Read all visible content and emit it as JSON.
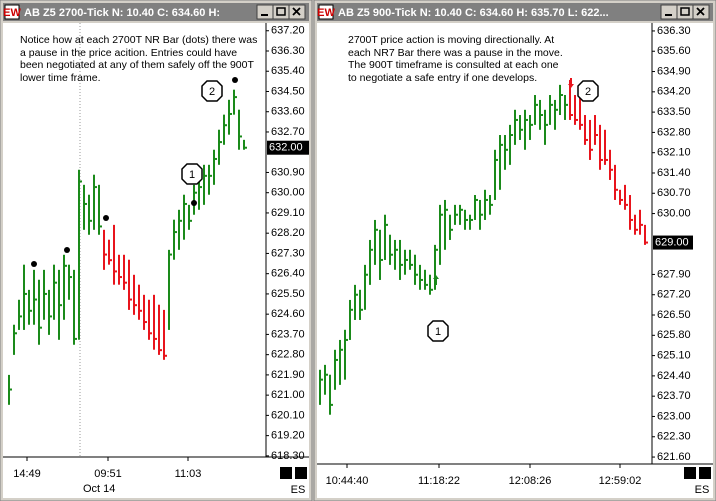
{
  "chart_data": [
    {
      "type": "ohlc",
      "title": "AB Z5 2700-Tick N:   10.40 C:   634.60  H:",
      "annotation": "Notice how at each 2700T NR Bar (dots) there was a pause in the price acition. Entries could have been negotiated at any of them safely off the 900T lower time frame.",
      "callouts": [
        "1",
        "2"
      ],
      "x_labels": [
        "14:49",
        "09:51",
        "11:03"
      ],
      "date_label": "Oct 14",
      "symbol_label": "ES",
      "last_price": {
        "value": 632.0,
        "label": "632.00"
      },
      "ylim": [
        618.25,
        637.5
      ],
      "yticks": [
        {
          "value": 637.2,
          "label": "637.20"
        },
        {
          "value": 636.3,
          "label": "636.30"
        },
        {
          "value": 635.4,
          "label": "635.40"
        },
        {
          "value": 634.5,
          "label": "634.50"
        },
        {
          "value": 633.6,
          "label": "633.60"
        },
        {
          "value": 632.7,
          "label": "632.70"
        },
        {
          "value": 630.9,
          "label": "630.90"
        },
        {
          "value": 630.0,
          "label": "630.00"
        },
        {
          "value": 629.1,
          "label": "629.10"
        },
        {
          "value": 628.2,
          "label": "628.20"
        },
        {
          "value": 627.3,
          "label": "627.30"
        },
        {
          "value": 626.4,
          "label": "626.40"
        },
        {
          "value": 625.5,
          "label": "625.50"
        },
        {
          "value": 624.6,
          "label": "624.60"
        },
        {
          "value": 623.7,
          "label": "623.70"
        },
        {
          "value": 622.8,
          "label": "622.80"
        },
        {
          "value": 621.9,
          "label": "621.90"
        },
        {
          "value": 621.0,
          "label": "621.00"
        },
        {
          "value": 620.1,
          "label": "620.10"
        },
        {
          "value": 619.2,
          "label": "619.20"
        },
        {
          "value": 618.3,
          "label": "618.30"
        }
      ],
      "high": [
        621.9,
        624.13,
        625.24,
        626.8,
        625.68,
        626.57,
        626.13,
        626.57,
        625.68,
        626.8,
        626.57,
        627.24,
        626.8,
        626.57,
        631.02,
        630.35,
        629.91,
        630.8,
        630.35,
        628.35,
        627.91,
        628.57,
        627.24,
        627.24,
        627.02,
        626.35,
        625.91,
        625.46,
        625.24,
        625.46,
        625.02,
        624.79,
        627.46,
        628.8,
        629.24,
        629.91,
        629.46,
        630.35,
        630.8,
        631.24,
        631.24,
        631.91,
        632.8,
        633.47,
        634.13,
        634.58,
        633.69,
        632.35
      ],
      "low": [
        620.57,
        622.79,
        623.9,
        623.9,
        624.13,
        624.13,
        623.24,
        624.35,
        623.68,
        624.35,
        623.46,
        624.35,
        625.24,
        623.24,
        623.46,
        628.35,
        628.13,
        628.35,
        628.13,
        626.57,
        626.8,
        625.91,
        625.91,
        625.68,
        624.79,
        624.57,
        624.35,
        623.9,
        623.46,
        623.02,
        622.79,
        622.57,
        623.9,
        627.02,
        627.46,
        627.91,
        628.35,
        629.02,
        629.24,
        629.46,
        629.91,
        630.35,
        631.24,
        632.13,
        632.58,
        633.47,
        631.91,
        631.91
      ],
      "close": [
        621.25,
        623.75,
        624.5,
        625.5,
        624.75,
        625.25,
        624.0,
        625.5,
        624.5,
        626.0,
        625.0,
        626.75,
        626.25,
        623.5,
        630.5,
        629.5,
        628.75,
        630.25,
        628.5,
        627.25,
        627.0,
        626.5,
        626.25,
        626.0,
        625.25,
        625.0,
        624.75,
        624.25,
        623.75,
        623.5,
        623.0,
        622.75,
        627.25,
        628.25,
        628.75,
        629.5,
        628.75,
        630.0,
        630.25,
        630.75,
        630.75,
        631.5,
        632.25,
        633.0,
        633.5,
        634.25,
        632.5,
        632.0
      ],
      "colors": [
        "#1a8a1a",
        "#1a8a1a",
        "#1a8a1a",
        "#1a8a1a",
        "#1a8a1a",
        "#1a8a1a",
        "#1a8a1a",
        "#1a8a1a",
        "#1a8a1a",
        "#1a8a1a",
        "#1a8a1a",
        "#1a8a1a",
        "#1a8a1a",
        "#1a8a1a",
        "#1a8a1a",
        "#1a8a1a",
        "#1a8a1a",
        "#1a8a1a",
        "#1a8a1a",
        "#e8141c",
        "#e8141c",
        "#e8141c",
        "#e8141c",
        "#e8141c",
        "#e8141c",
        "#e8141c",
        "#e8141c",
        "#e8141c",
        "#e8141c",
        "#e8141c",
        "#e8141c",
        "#e8141c",
        "#1a8a1a",
        "#1a8a1a",
        "#1a8a1a",
        "#1a8a1a",
        "#1a8a1a",
        "#1a8a1a",
        "#1a8a1a",
        "#1a8a1a",
        "#1a8a1a",
        "#1a8a1a",
        "#1a8a1a",
        "#1a8a1a",
        "#1a8a1a",
        "#1a8a1a",
        "#1a8a1a",
        "#1a8a1a"
      ]
    },
    {
      "type": "ohlc",
      "title": "AB Z5 900-Tick N:   10.40 C:   634.60 H:   635.70 L:   622...",
      "annotation": "2700T price action is moving directionally. At each NR7 Bar there was a pause in the move. The 900T timeframe is consulted at each one to negotiate a safe entry if one develops.",
      "callouts": [
        "1",
        "2"
      ],
      "x_labels": [
        "10:44:40",
        "11:18:22",
        "12:08:26",
        "12:59:02"
      ],
      "symbol_label": "ES",
      "last_price": {
        "value": 629.0,
        "label": "629.00"
      },
      "ylim": [
        621.36,
        636.54
      ],
      "yticks": [
        {
          "value": 636.3,
          "label": "636.30"
        },
        {
          "value": 635.6,
          "label": "635.60"
        },
        {
          "value": 634.9,
          "label": "634.90"
        },
        {
          "value": 634.2,
          "label": "634.20"
        },
        {
          "value": 633.5,
          "label": "633.50"
        },
        {
          "value": 632.8,
          "label": "632.80"
        },
        {
          "value": 632.1,
          "label": "632.10"
        },
        {
          "value": 631.4,
          "label": "631.40"
        },
        {
          "value": 630.7,
          "label": "630.70"
        },
        {
          "value": 630.0,
          "label": "630.00"
        },
        {
          "value": 627.9,
          "label": "627.90"
        },
        {
          "value": 627.2,
          "label": "627.20"
        },
        {
          "value": 626.5,
          "label": "626.50"
        },
        {
          "value": 625.8,
          "label": "625.80"
        },
        {
          "value": 625.1,
          "label": "625.10"
        },
        {
          "value": 624.4,
          "label": "624.40"
        },
        {
          "value": 623.7,
          "label": "623.70"
        },
        {
          "value": 623.0,
          "label": "623.00"
        },
        {
          "value": 622.3,
          "label": "622.30"
        },
        {
          "value": 621.6,
          "label": "621.60"
        }
      ],
      "high": [
        624.61,
        624.78,
        624.44,
        625.3,
        625.64,
        625.99,
        627.02,
        627.54,
        627.37,
        628.23,
        629.09,
        629.78,
        629.44,
        629.96,
        629.27,
        629.09,
        629.09,
        628.75,
        628.75,
        628.58,
        628.23,
        628.06,
        627.89,
        628.92,
        630.3,
        630.47,
        629.96,
        630.3,
        630.3,
        630.13,
        629.96,
        630.64,
        630.47,
        630.82,
        630.64,
        632.2,
        632.71,
        632.71,
        633.06,
        633.58,
        633.4,
        633.58,
        633.4,
        634.09,
        633.92,
        633.58,
        634.09,
        633.92,
        634.44,
        634.09,
        634.61,
        634.09,
        634.09,
        633.4,
        633.23,
        633.4,
        633.06,
        632.89,
        632.2,
        631.68,
        630.82,
        630.99,
        630.64,
        629.96,
        630.13,
        629.61
      ],
      "low": [
        623.4,
        623.75,
        623.06,
        623.92,
        624.09,
        624.27,
        625.64,
        626.33,
        626.33,
        626.68,
        627.54,
        628.23,
        627.71,
        628.4,
        628.23,
        628.06,
        627.71,
        627.89,
        628.06,
        627.54,
        627.37,
        627.37,
        627.2,
        627.37,
        628.23,
        628.75,
        629.09,
        629.61,
        629.61,
        629.44,
        629.44,
        629.78,
        629.44,
        629.78,
        629.96,
        630.47,
        630.82,
        631.51,
        631.68,
        632.37,
        632.54,
        632.2,
        632.54,
        633.06,
        632.89,
        632.37,
        633.06,
        632.89,
        633.4,
        633.23,
        633.23,
        633.06,
        632.89,
        632.37,
        631.85,
        632.37,
        631.51,
        631.68,
        631.16,
        630.47,
        630.3,
        630.13,
        629.44,
        629.27,
        629.27,
        628.92
      ],
      "close": [
        624.27,
        624.44,
        623.4,
        624.95,
        625.3,
        625.64,
        626.68,
        627.2,
        626.68,
        627.89,
        628.75,
        629.44,
        628.4,
        629.61,
        628.58,
        628.75,
        628.23,
        628.4,
        628.23,
        627.89,
        627.71,
        627.54,
        627.37,
        628.75,
        629.96,
        630.13,
        629.44,
        629.96,
        630.13,
        629.78,
        629.78,
        630.47,
        629.96,
        630.47,
        630.3,
        631.85,
        632.37,
        632.2,
        632.71,
        633.23,
        632.89,
        633.23,
        633.06,
        633.75,
        633.4,
        633.06,
        633.75,
        633.58,
        634.09,
        633.75,
        633.4,
        633.23,
        633.06,
        632.54,
        632.2,
        632.71,
        631.85,
        631.85,
        631.51,
        630.82,
        630.47,
        630.3,
        629.78,
        629.44,
        629.61,
        629.0
      ],
      "colors": [
        "#1a8a1a",
        "#1a8a1a",
        "#1a8a1a",
        "#1a8a1a",
        "#1a8a1a",
        "#1a8a1a",
        "#1a8a1a",
        "#1a8a1a",
        "#1a8a1a",
        "#1a8a1a",
        "#1a8a1a",
        "#1a8a1a",
        "#1a8a1a",
        "#1a8a1a",
        "#1a8a1a",
        "#1a8a1a",
        "#1a8a1a",
        "#1a8a1a",
        "#1a8a1a",
        "#1a8a1a",
        "#1a8a1a",
        "#1a8a1a",
        "#1a8a1a",
        "#1a8a1a",
        "#1a8a1a",
        "#1a8a1a",
        "#1a8a1a",
        "#1a8a1a",
        "#1a8a1a",
        "#1a8a1a",
        "#1a8a1a",
        "#1a8a1a",
        "#1a8a1a",
        "#1a8a1a",
        "#1a8a1a",
        "#1a8a1a",
        "#1a8a1a",
        "#1a8a1a",
        "#1a8a1a",
        "#1a8a1a",
        "#1a8a1a",
        "#1a8a1a",
        "#1a8a1a",
        "#1a8a1a",
        "#1a8a1a",
        "#1a8a1a",
        "#1a8a1a",
        "#1a8a1a",
        "#1a8a1a",
        "#1a8a1a",
        "#e8141c",
        "#e8141c",
        "#e8141c",
        "#e8141c",
        "#e8141c",
        "#e8141c",
        "#e8141c",
        "#e8141c",
        "#e8141c",
        "#e8141c",
        "#e8141c",
        "#e8141c",
        "#e8141c",
        "#e8141c",
        "#e8141c",
        "#e8141c"
      ]
    }
  ]
}
